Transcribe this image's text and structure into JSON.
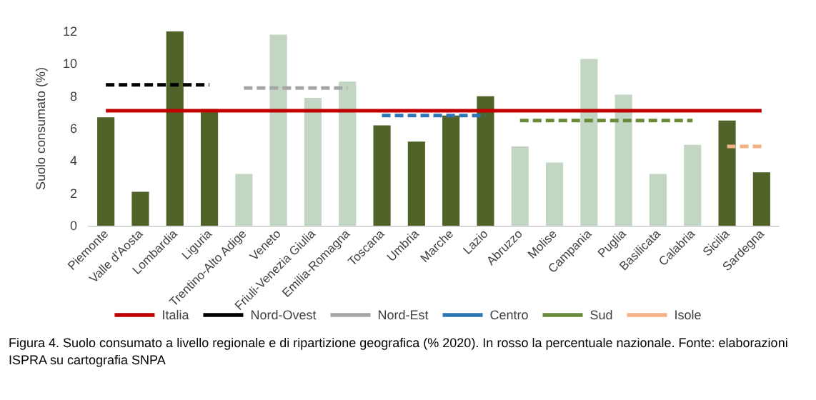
{
  "chart_data": {
    "type": "bar",
    "ylabel": "Suolo consumato (%)",
    "categories": [
      "Piemonte",
      "Valle d'Aosta",
      "Lombardia",
      "Liguria",
      "Trentino-Alto Adige",
      "Veneto",
      "Friuli-Venezia Giulia",
      "Emilia-Romagna",
      "Toscana",
      "Umbria",
      "Marche",
      "Lazio",
      "Abruzzo",
      "Molise",
      "Campania",
      "Puglia",
      "Basilicata",
      "Calabria",
      "Sicilia",
      "Sardegna"
    ],
    "series": [
      {
        "values": [
          6.7,
          2.1,
          12.0,
          7.2,
          3.2,
          11.8,
          7.9,
          8.9,
          6.2,
          5.2,
          6.8,
          8.0,
          4.9,
          3.9,
          10.3,
          8.1,
          3.2,
          5.0,
          6.5,
          3.3
        ],
        "colors": [
          "#4f6228",
          "#4f6228",
          "#4f6228",
          "#4f6228",
          "#c3d6c3",
          "#c3d6c3",
          "#c3d6c3",
          "#c3d6c3",
          "#4f6228",
          "#4f6228",
          "#4f6228",
          "#4f6228",
          "#c3d6c3",
          "#c3d6c3",
          "#c3d6c3",
          "#c3d6c3",
          "#c3d6c3",
          "#c3d6c3",
          "#4f6228",
          "#4f6228"
        ]
      },
      {
        "type": "line",
        "name": "Italia",
        "color": "#c00000",
        "line_style": "solid",
        "x": [
          "Piemonte",
          "Sardegna"
        ],
        "values": [
          7.1,
          7.1
        ]
      },
      {
        "type": "line",
        "name": "Nord-Ovest",
        "color": "#000000",
        "line_style": "dashed",
        "x": [
          "Piemonte",
          "Liguria"
        ],
        "values": [
          8.7,
          8.7
        ]
      },
      {
        "type": "line",
        "name": "Nord-Est",
        "color": "#a6a6a6",
        "line_style": "dashed",
        "x": [
          "Trentino-Alto Adige",
          "Emilia-Romagna"
        ],
        "values": [
          8.5,
          8.5
        ]
      },
      {
        "type": "line",
        "name": "Centro",
        "color": "#2e75b6",
        "line_style": "dashed",
        "x": [
          "Toscana",
          "Lazio"
        ],
        "values": [
          6.8,
          6.8
        ]
      },
      {
        "type": "line",
        "name": "Sud",
        "color": "#6a8a3a",
        "line_style": "dashed",
        "x": [
          "Abruzzo",
          "Calabria"
        ],
        "values": [
          6.5,
          6.5
        ]
      },
      {
        "type": "line",
        "name": "Isole",
        "color": "#f4b183",
        "line_style": "dashed",
        "x": [
          "Sicilia",
          "Sardegna"
        ],
        "values": [
          4.9,
          4.9
        ]
      }
    ],
    "ylim": [
      0,
      12
    ],
    "yticks": [
      0,
      2,
      4,
      6,
      8,
      10,
      12
    ],
    "grid": false,
    "legend": "bottom",
    "marker": "none",
    "annotations": [
      "Figura 4. Suolo consumato a livello regionale e di ripartizione geografica (% 2020). In rosso la percentuale nazionale. Fonte: elaborazioni ISPRA su cartografia SNPA"
    ]
  }
}
